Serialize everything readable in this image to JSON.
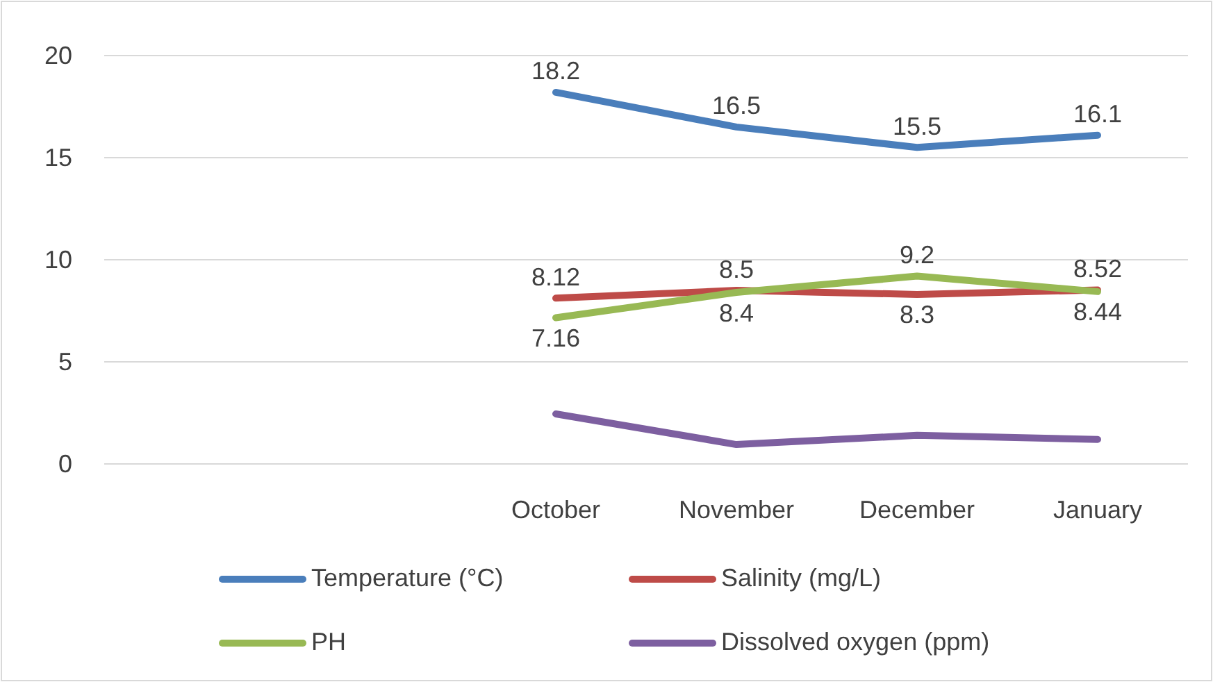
{
  "chart_data": {
    "type": "line",
    "categories": [
      null,
      null,
      "October",
      "November",
      "December",
      "January"
    ],
    "ylim": [
      0,
      20
    ],
    "yticks": [
      0,
      5,
      10,
      15,
      20
    ],
    "grid": "y",
    "legend": "bottom",
    "marker": "none",
    "line_style": "solid",
    "series": [
      {
        "name": "Temperature (°C)",
        "color": "#4a7ebb",
        "values": [
          null,
          null,
          18.2,
          16.5,
          15.5,
          16.1
        ],
        "value_labels": [
          null,
          null,
          "18.2",
          "16.5",
          "15.5",
          "16.1"
        ]
      },
      {
        "name": "Salinity (mg/L)",
        "color": "#be4b48",
        "values": [
          null,
          null,
          8.12,
          8.5,
          8.3,
          8.52
        ],
        "value_labels": [
          null,
          null,
          "8.12",
          "8.5",
          "8.3",
          "8.52"
        ]
      },
      {
        "name": "PH",
        "color": "#98b954",
        "values": [
          null,
          null,
          7.16,
          8.4,
          9.2,
          8.44
        ],
        "value_labels": [
          null,
          null,
          "7.16",
          "8.4",
          "9.2",
          "8.44"
        ]
      },
      {
        "name": "Dissolved oxygen (ppm)",
        "color": "#7d5fa0",
        "values": [
          null,
          null,
          2.45,
          0.95,
          1.4,
          1.2
        ]
      }
    ]
  }
}
